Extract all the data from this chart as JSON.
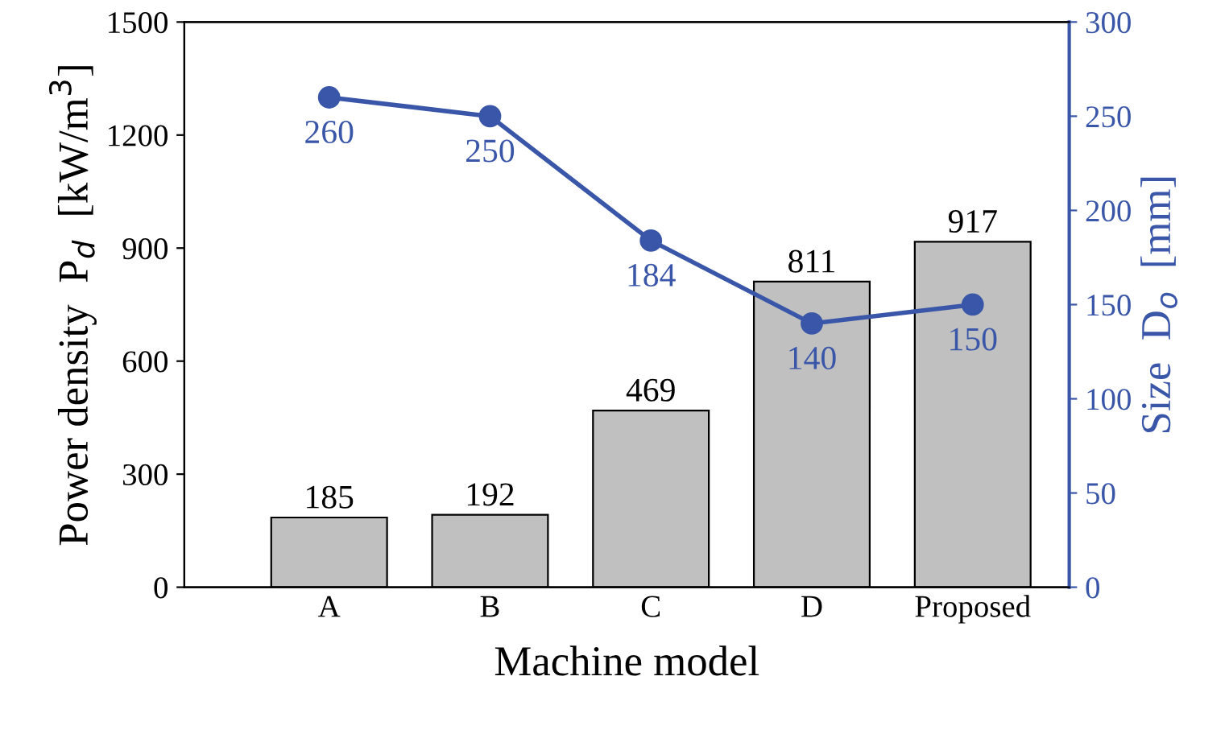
{
  "chart_data": {
    "type": "bar",
    "xlabel": "Machine model",
    "ylabel": "Power density  P$_{d}$  [kW/m$^{3}$]",
    "y2label": "Size  D$_{o}$  [mm]",
    "categories": [
      "A",
      "B",
      "C",
      "D",
      "Proposed"
    ],
    "series": [
      {
        "color": "#c0c0c0",
        "values": [
          185,
          192,
          469,
          811,
          917
        ]
      },
      {
        "type": "line",
        "axis": "y2",
        "color": "#3a56a8",
        "marker": "circle",
        "line_style": "solid",
        "values": [
          260,
          250,
          184,
          140,
          150
        ]
      }
    ],
    "ylim": [
      0,
      1500
    ],
    "yticks": [
      0,
      300,
      600,
      900,
      1200,
      1500
    ],
    "y2lim": [
      0,
      300
    ],
    "y2ticks": [
      0,
      50,
      100,
      150,
      200,
      250,
      300
    ],
    "data_labels": true
  }
}
